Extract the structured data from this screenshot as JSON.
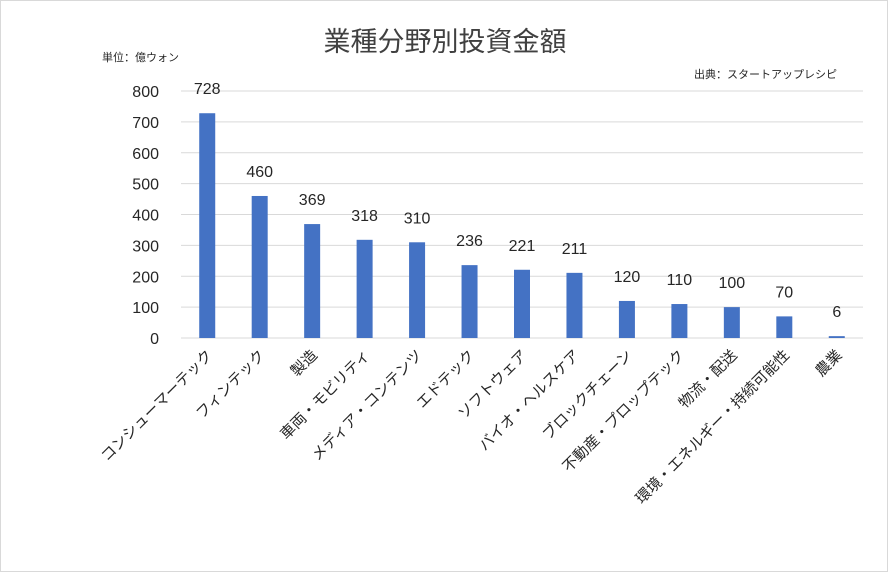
{
  "chart_data": {
    "type": "bar",
    "title": "業種分野別投資金額",
    "unit_label": "単位：億ウォン",
    "source_label": "出典：スタートアップレシピ",
    "categories": [
      "コンシューマーテック",
      "フィンテック",
      "製造",
      "車両・モビリティ",
      "メディア・コンテンツ",
      "エドテック",
      "ソフトウェア",
      "バイオ・ヘルスケア",
      "ブロックチェーン",
      "不動産・プロップテック",
      "物流・配送",
      "環境・エネルギー・持続可能性",
      "農業"
    ],
    "values": [
      728,
      460,
      369,
      318,
      310,
      236,
      221,
      211,
      120,
      110,
      100,
      70,
      6
    ],
    "ylim": [
      0,
      800
    ],
    "yticks": [
      "0",
      "100",
      "200",
      "300",
      "400",
      "500",
      "600",
      "700",
      "800"
    ],
    "grid": true,
    "bar_color": "#4472C4",
    "grid_color": "#d9d9d9"
  }
}
